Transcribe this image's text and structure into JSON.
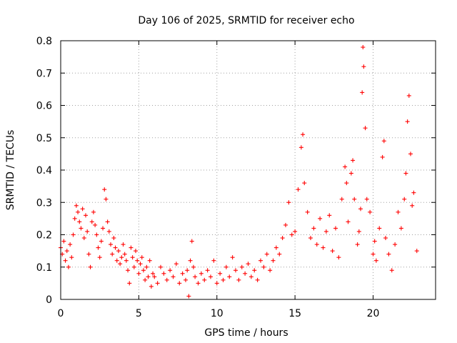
{
  "chart_data": {
    "type": "scatter",
    "title": "Day 106 of 2025, SRMTID for receiver echo",
    "xlabel": "GPS time / hours",
    "ylabel": "SRMTID / TECUs",
    "xlim": [
      0,
      24
    ],
    "ylim": [
      0,
      0.8
    ],
    "xticks": [
      0,
      5,
      10,
      15,
      20
    ],
    "yticks": [
      0,
      0.1,
      0.2,
      0.3,
      0.4,
      0.5,
      0.6,
      0.7,
      0.8
    ],
    "xtick_labels": [
      "0",
      "5",
      "10",
      "15",
      "20"
    ],
    "ytick_labels": [
      "0",
      "0.1",
      "0.2",
      "0.3",
      "0.4",
      "0.5",
      "0.6",
      "0.7",
      "0.8"
    ],
    "grid": true,
    "marker": "+",
    "color": "#ff0000",
    "series": [
      {
        "name": "SRMTID",
        "points": [
          [
            0.0,
            0.16
          ],
          [
            0.1,
            0.14
          ],
          [
            0.2,
            0.18
          ],
          [
            0.3,
            0.12
          ],
          [
            0.4,
            0.15
          ],
          [
            0.5,
            0.1
          ],
          [
            0.6,
            0.17
          ],
          [
            0.7,
            0.13
          ],
          [
            0.8,
            0.2
          ],
          [
            0.9,
            0.25
          ],
          [
            1.0,
            0.29
          ],
          [
            1.1,
            0.27
          ],
          [
            1.2,
            0.24
          ],
          [
            1.3,
            0.22
          ],
          [
            1.4,
            0.28
          ],
          [
            1.5,
            0.19
          ],
          [
            1.6,
            0.26
          ],
          [
            1.7,
            0.21
          ],
          [
            1.8,
            0.14
          ],
          [
            1.9,
            0.1
          ],
          [
            2.0,
            0.24
          ],
          [
            2.1,
            0.27
          ],
          [
            2.2,
            0.23
          ],
          [
            2.3,
            0.2
          ],
          [
            2.4,
            0.16
          ],
          [
            2.5,
            0.13
          ],
          [
            2.6,
            0.18
          ],
          [
            2.7,
            0.22
          ],
          [
            2.8,
            0.34
          ],
          [
            2.9,
            0.31
          ],
          [
            3.0,
            0.24
          ],
          [
            3.1,
            0.21
          ],
          [
            3.2,
            0.17
          ],
          [
            3.3,
            0.14
          ],
          [
            3.4,
            0.19
          ],
          [
            3.5,
            0.16
          ],
          [
            3.6,
            0.12
          ],
          [
            3.7,
            0.15
          ],
          [
            3.8,
            0.11
          ],
          [
            3.9,
            0.13
          ],
          [
            4.0,
            0.17
          ],
          [
            4.1,
            0.14
          ],
          [
            4.2,
            0.12
          ],
          [
            4.3,
            0.09
          ],
          [
            4.4,
            0.05
          ],
          [
            4.5,
            0.16
          ],
          [
            4.6,
            0.13
          ],
          [
            4.7,
            0.1
          ],
          [
            4.8,
            0.15
          ],
          [
            4.9,
            0.12
          ],
          [
            5.0,
            0.08
          ],
          [
            5.1,
            0.11
          ],
          [
            5.2,
            0.13
          ],
          [
            5.3,
            0.09
          ],
          [
            5.4,
            0.06
          ],
          [
            5.5,
            0.1
          ],
          [
            5.6,
            0.07
          ],
          [
            5.7,
            0.12
          ],
          [
            5.8,
            0.04
          ],
          [
            5.9,
            0.08
          ],
          [
            6.0,
            0.07
          ],
          [
            6.2,
            0.05
          ],
          [
            6.4,
            0.1
          ],
          [
            6.6,
            0.08
          ],
          [
            6.8,
            0.06
          ],
          [
            7.0,
            0.09
          ],
          [
            7.2,
            0.07
          ],
          [
            7.4,
            0.11
          ],
          [
            7.6,
            0.05
          ],
          [
            7.8,
            0.08
          ],
          [
            8.0,
            0.06
          ],
          [
            8.1,
            0.09
          ],
          [
            8.2,
            0.01
          ],
          [
            8.3,
            0.12
          ],
          [
            8.4,
            0.18
          ],
          [
            8.5,
            0.1
          ],
          [
            8.6,
            0.07
          ],
          [
            8.8,
            0.05
          ],
          [
            9.0,
            0.08
          ],
          [
            9.2,
            0.06
          ],
          [
            9.4,
            0.09
          ],
          [
            9.6,
            0.07
          ],
          [
            9.8,
            0.12
          ],
          [
            10.0,
            0.05
          ],
          [
            10.2,
            0.08
          ],
          [
            10.4,
            0.06
          ],
          [
            10.6,
            0.1
          ],
          [
            10.8,
            0.07
          ],
          [
            11.0,
            0.13
          ],
          [
            11.2,
            0.09
          ],
          [
            11.4,
            0.06
          ],
          [
            11.6,
            0.1
          ],
          [
            11.8,
            0.08
          ],
          [
            12.0,
            0.11
          ],
          [
            12.2,
            0.07
          ],
          [
            12.4,
            0.09
          ],
          [
            12.6,
            0.06
          ],
          [
            12.8,
            0.12
          ],
          [
            13.0,
            0.1
          ],
          [
            13.2,
            0.14
          ],
          [
            13.4,
            0.09
          ],
          [
            13.6,
            0.12
          ],
          [
            13.8,
            0.16
          ],
          [
            14.0,
            0.14
          ],
          [
            14.2,
            0.19
          ],
          [
            14.4,
            0.23
          ],
          [
            14.6,
            0.3
          ],
          [
            14.8,
            0.2
          ],
          [
            15.0,
            0.21
          ],
          [
            15.2,
            0.34
          ],
          [
            15.4,
            0.47
          ],
          [
            15.5,
            0.51
          ],
          [
            15.6,
            0.36
          ],
          [
            15.8,
            0.27
          ],
          [
            16.0,
            0.19
          ],
          [
            16.2,
            0.22
          ],
          [
            16.4,
            0.17
          ],
          [
            16.6,
            0.25
          ],
          [
            16.8,
            0.16
          ],
          [
            17.0,
            0.21
          ],
          [
            17.2,
            0.26
          ],
          [
            17.4,
            0.15
          ],
          [
            17.6,
            0.22
          ],
          [
            17.8,
            0.13
          ],
          [
            18.0,
            0.31
          ],
          [
            18.2,
            0.41
          ],
          [
            18.3,
            0.36
          ],
          [
            18.4,
            0.24
          ],
          [
            18.6,
            0.39
          ],
          [
            18.7,
            0.43
          ],
          [
            18.8,
            0.31
          ],
          [
            19.0,
            0.17
          ],
          [
            19.1,
            0.21
          ],
          [
            19.2,
            0.28
          ],
          [
            19.3,
            0.64
          ],
          [
            19.35,
            0.78
          ],
          [
            19.4,
            0.72
          ],
          [
            19.5,
            0.53
          ],
          [
            19.6,
            0.31
          ],
          [
            19.8,
            0.27
          ],
          [
            20.0,
            0.14
          ],
          [
            20.1,
            0.18
          ],
          [
            20.2,
            0.12
          ],
          [
            20.4,
            0.22
          ],
          [
            20.6,
            0.44
          ],
          [
            20.7,
            0.49
          ],
          [
            20.8,
            0.19
          ],
          [
            21.0,
            0.14
          ],
          [
            21.2,
            0.09
          ],
          [
            21.4,
            0.17
          ],
          [
            21.6,
            0.27
          ],
          [
            21.8,
            0.22
          ],
          [
            22.0,
            0.31
          ],
          [
            22.1,
            0.39
          ],
          [
            22.2,
            0.55
          ],
          [
            22.3,
            0.63
          ],
          [
            22.4,
            0.45
          ],
          [
            22.5,
            0.29
          ],
          [
            22.6,
            0.33
          ],
          [
            22.8,
            0.15
          ]
        ]
      }
    ]
  }
}
